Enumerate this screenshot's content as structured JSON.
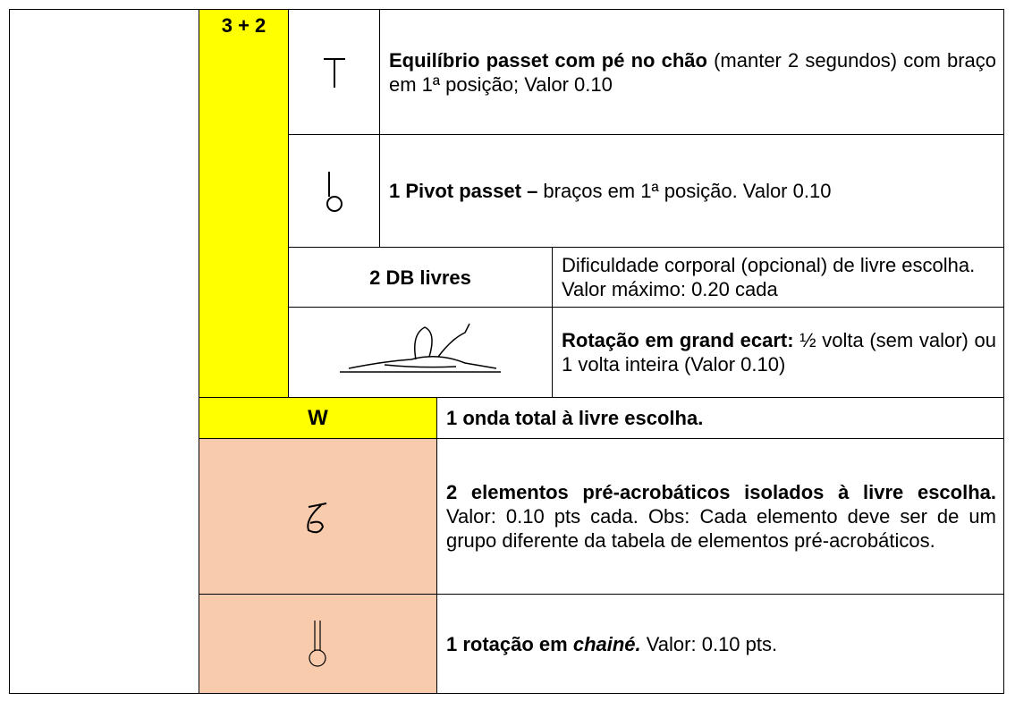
{
  "table": {
    "group_label": "3 + 2",
    "rows": [
      {
        "bold": "Equilíbrio passet com pé no chão",
        "text": " (manter 2 segundos) com braço em 1ª posição; Valor 0.10"
      },
      {
        "bold": "1 Pivot passet –",
        "text": " braços em 1ª posição. Valor 0.10"
      },
      {
        "label": "2 DB livres",
        "text": "Dificuldade corporal (opcional) de livre escolha. Valor máximo: 0.20 cada"
      },
      {
        "bold": "Rotação em grand ecart:",
        "text": " ½ volta (sem valor) ou 1 volta inteira (Valor 0.10)"
      },
      {
        "label": "W",
        "bold": "1 onda total à livre escolha."
      },
      {
        "bold": "2 elementos pré-acrobáticos isolados à livre escolha.",
        "text": " Valor: 0.10 pts cada. Obs: Cada elemento deve ser de um grupo diferente da tabela de elementos pré-acrobáticos."
      },
      {
        "bold": "1 rotação em ",
        "bold_italic": "chainé.",
        "text": " Valor: 0.10 pts."
      }
    ]
  }
}
